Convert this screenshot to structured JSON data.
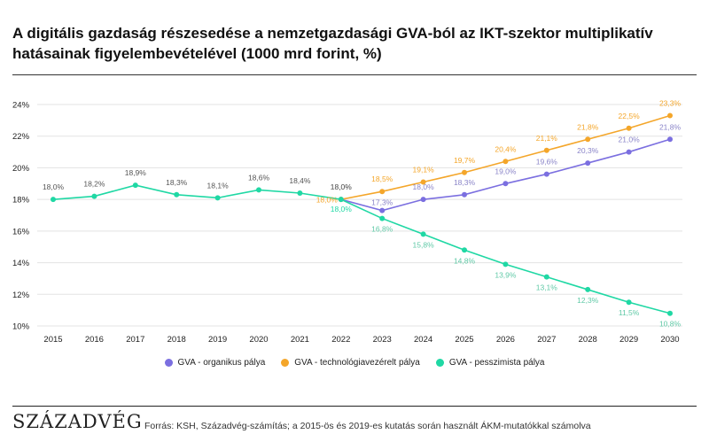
{
  "title": "A digitális gazdaság részesedése a nemzetgazdasági GVA-ból az IKT-szektor multiplikatív hatásainak figyelembevételével (1000 mrd forint, %)",
  "brand": "SZÁZADVÉG",
  "source": "Forrás: KSH, Századvég-számítás; a 2015-ös és 2019-es kutatás során használt ÁKM-mutatókkal számolva",
  "chart_data": {
    "type": "line",
    "x": [
      "2015",
      "2016",
      "2017",
      "2018",
      "2019",
      "2020",
      "2021",
      "2022",
      "2023",
      "2024",
      "2025",
      "2026",
      "2027",
      "2028",
      "2029",
      "2030"
    ],
    "ylim": [
      10,
      24
    ],
    "yticks": [
      "10%",
      "12%",
      "14%",
      "16%",
      "18%",
      "20%",
      "22%",
      "24%"
    ],
    "ytick_values": [
      10,
      12,
      14,
      16,
      18,
      20,
      22,
      24
    ],
    "grid": true,
    "legend_position": "bottom",
    "series": [
      {
        "name": "GVA - organikus pálya",
        "color": "#7b6fe0",
        "values": [
          null,
          null,
          null,
          null,
          null,
          null,
          null,
          18.0,
          17.3,
          18.0,
          18.3,
          19.0,
          19.6,
          20.3,
          21.0,
          21.8
        ],
        "labels": [
          "",
          "",
          "",
          "",
          "",
          "",
          "",
          "",
          "17,3%",
          "18,0%",
          "18,3%",
          "19,0%",
          "19,6%",
          "20,3%",
          "21,0%",
          "21,8%"
        ]
      },
      {
        "name": "GVA - technológiavezérelt pálya",
        "color": "#f4a62a",
        "values": [
          null,
          null,
          null,
          null,
          null,
          null,
          null,
          18.0,
          18.5,
          19.1,
          19.7,
          20.4,
          21.1,
          21.8,
          22.5,
          23.3
        ],
        "labels": [
          "",
          "",
          "",
          "",
          "",
          "",
          "",
          "18,0%",
          "18,5%",
          "19,1%",
          "19,7%",
          "20,4%",
          "21,1%",
          "21,8%",
          "22,5%",
          "23,3%"
        ]
      },
      {
        "name": "GVA - pesszimista pálya",
        "color": "#1fd8a4",
        "values": [
          18.0,
          18.2,
          18.9,
          18.3,
          18.1,
          18.6,
          18.4,
          18.0,
          16.8,
          15.8,
          14.8,
          13.9,
          13.1,
          12.3,
          11.5,
          10.8
        ],
        "labels": [
          "18,0%",
          "18,2%",
          "18,9%",
          "18,3%",
          "18,1%",
          "18,6%",
          "18,4%",
          "18,0%",
          "16,8%",
          "15,8%",
          "14,8%",
          "13,9%",
          "13,1%",
          "12,3%",
          "11,5%",
          "10,8%"
        ]
      }
    ],
    "extra_labels": [
      {
        "text": "18,0%",
        "x_index": 7,
        "value": 18.0,
        "position": "above",
        "color": "#6b6b6b"
      },
      {
        "text": "18,0%",
        "x_index": 7,
        "value": 18.0,
        "position": "below",
        "color": "#1fd8a4"
      }
    ]
  }
}
